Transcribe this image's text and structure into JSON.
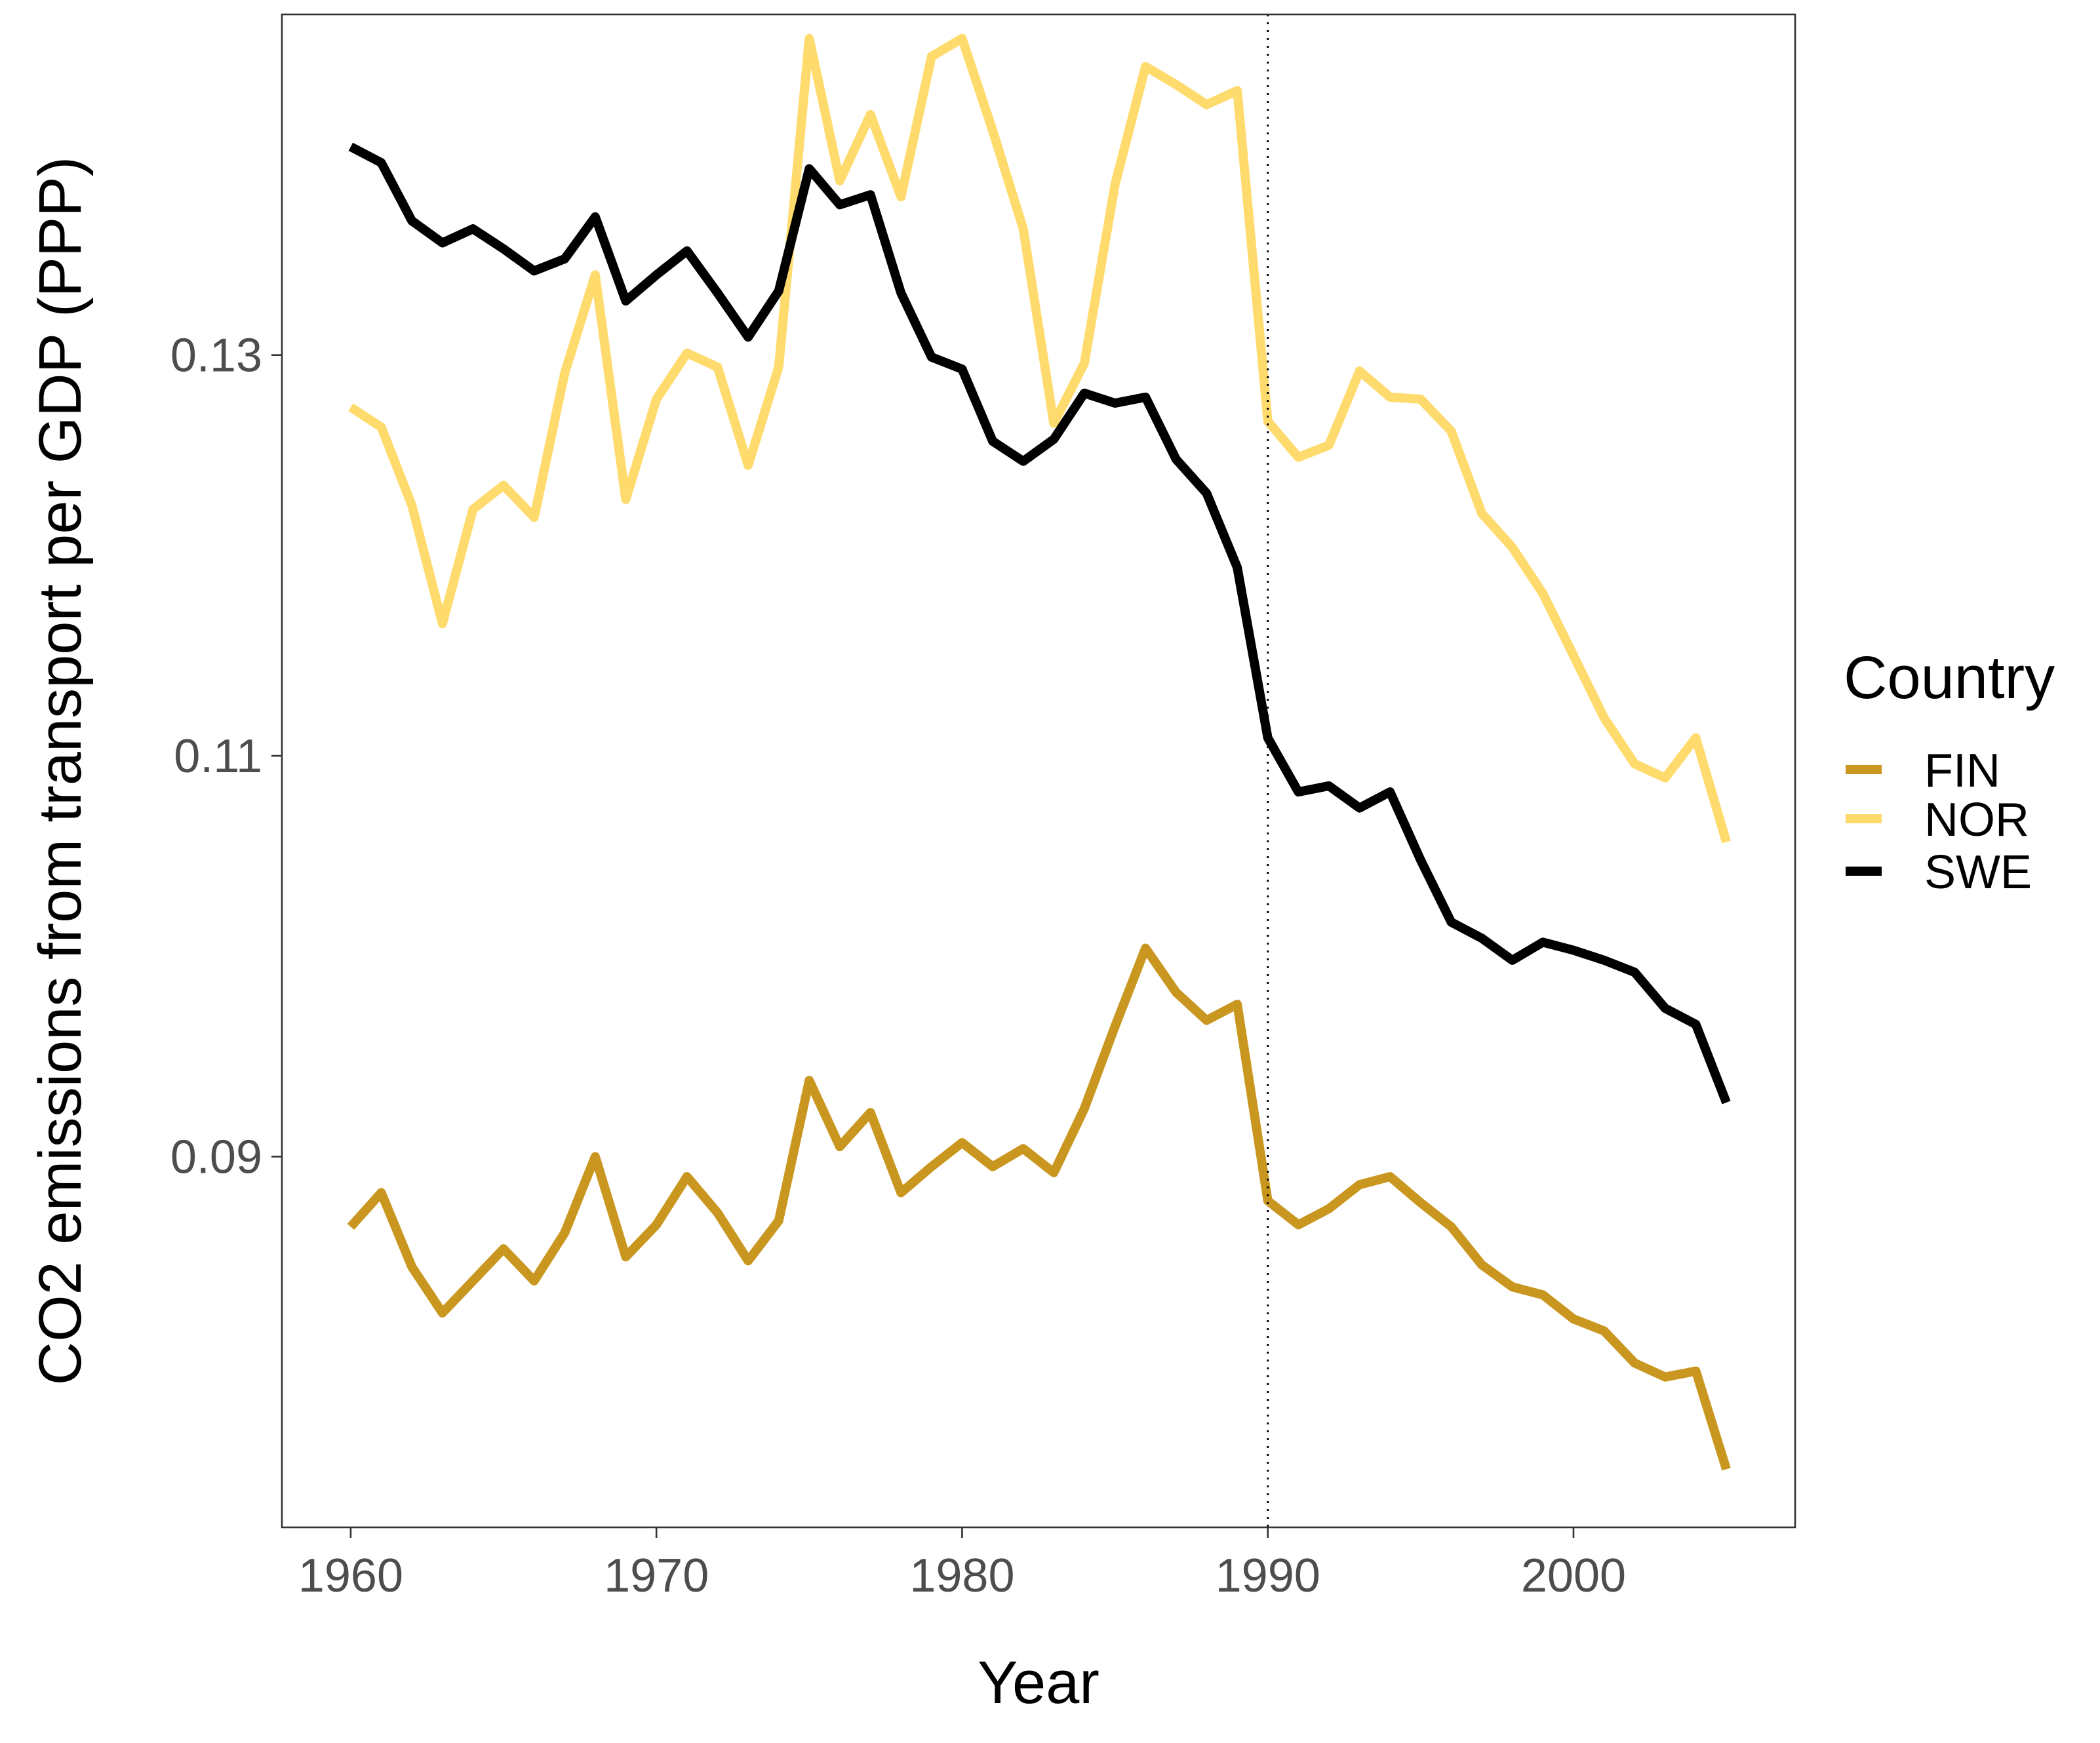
{
  "chart_data": {
    "type": "line",
    "title": "",
    "xlabel": "Year",
    "ylabel": "CO2 emissions from transport per GDP (PPP)",
    "xlim": [
      1957.75,
      2007.25
    ],
    "ylim": [
      0.0715,
      0.147
    ],
    "x_ticks": [
      1960,
      1970,
      1980,
      1990,
      2000
    ],
    "x_tick_labels": [
      "1960",
      "1970",
      "1980",
      "1990",
      "2000"
    ],
    "y_ticks": [
      0.09,
      0.11,
      0.13
    ],
    "y_tick_labels": [
      "0.09",
      "0.11",
      "0.13"
    ],
    "grid": false,
    "panel_border": true,
    "vline": {
      "x": 1990,
      "style": "dotted",
      "color": "#000000"
    },
    "legend": {
      "title": "Country",
      "position": "right"
    },
    "x": [
      1960,
      1961,
      1962,
      1963,
      1964,
      1965,
      1966,
      1967,
      1968,
      1969,
      1970,
      1971,
      1972,
      1973,
      1974,
      1975,
      1976,
      1977,
      1978,
      1979,
      1980,
      1981,
      1982,
      1983,
      1984,
      1985,
      1986,
      1987,
      1988,
      1989,
      1990,
      1991,
      1992,
      1993,
      1994,
      1995,
      1996,
      1997,
      1998,
      1999,
      2000,
      2001,
      2002,
      2003,
      2004,
      2005
    ],
    "series": [
      {
        "name": "FIN",
        "color": "#C9971F",
        "values": [
          0.0865,
          0.0882,
          0.0845,
          0.0822,
          0.0838,
          0.0854,
          0.0838,
          0.0862,
          0.09,
          0.085,
          0.0866,
          0.089,
          0.0872,
          0.0848,
          0.0868,
          0.0938,
          0.0905,
          0.0922,
          0.0882,
          0.0895,
          0.0907,
          0.0895,
          0.0904,
          0.0892,
          0.0924,
          0.0965,
          0.1004,
          0.0982,
          0.0968,
          0.0976,
          0.0878,
          0.0866,
          0.0874,
          0.0886,
          0.089,
          0.0877,
          0.0865,
          0.0846,
          0.0835,
          0.0831,
          0.0819,
          0.0813,
          0.0797,
          0.079,
          0.0793,
          0.0744
        ]
      },
      {
        "name": "NOR",
        "color": "#FFDB6D",
        "values": [
          0.1274,
          0.1264,
          0.1225,
          0.1166,
          0.1223,
          0.1235,
          0.1219,
          0.1291,
          0.134,
          0.1228,
          0.1278,
          0.1301,
          0.1294,
          0.1245,
          0.1294,
          0.1458,
          0.1387,
          0.142,
          0.1379,
          0.1449,
          0.1458,
          0.1412,
          0.1363,
          0.1266,
          0.1296,
          0.1385,
          0.1444,
          0.1435,
          0.1425,
          0.1432,
          0.1267,
          0.1249,
          0.1255,
          0.1292,
          0.1279,
          0.1278,
          0.1262,
          0.1221,
          0.1204,
          0.1181,
          0.115,
          0.1119,
          0.1096,
          0.1089,
          0.1109,
          0.1057
        ]
      },
      {
        "name": "SWE",
        "color": "#000000",
        "values": [
          0.1404,
          0.1396,
          0.1367,
          0.1356,
          0.1363,
          0.1353,
          0.1342,
          0.1348,
          0.1369,
          0.1327,
          0.134,
          0.1352,
          0.1331,
          0.1309,
          0.1332,
          0.1393,
          0.1375,
          0.138,
          0.1331,
          0.1299,
          0.1293,
          0.1257,
          0.1247,
          0.1258,
          0.1281,
          0.1276,
          0.1279,
          0.1248,
          0.1231,
          0.1194,
          0.1109,
          0.1082,
          0.1085,
          0.1074,
          0.1082,
          0.1048,
          0.1017,
          0.1009,
          0.0998,
          0.1007,
          0.1003,
          0.0998,
          0.0992,
          0.0974,
          0.0966,
          0.0927
        ]
      }
    ]
  }
}
